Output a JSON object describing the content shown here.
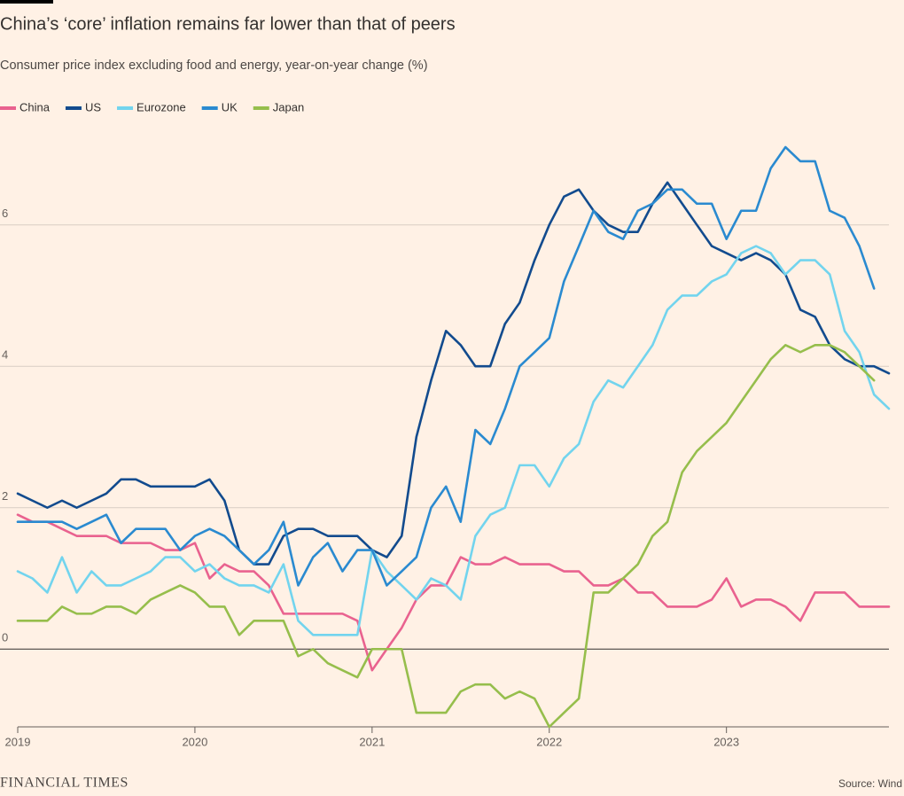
{
  "chart_data": {
    "type": "line",
    "title": "China’s ‘core’ inflation remains far lower than that of peers",
    "subtitle": "Consumer price index excluding food and energy, year-on-year change (%)",
    "source": "Source: Wind",
    "brand": "FINANCIAL TIMES",
    "x": [
      2019,
      2019.083,
      2019.167,
      2019.25,
      2019.333,
      2019.417,
      2019.5,
      2019.583,
      2019.667,
      2019.75,
      2019.833,
      2019.917,
      2020,
      2020.083,
      2020.167,
      2020.25,
      2020.333,
      2020.417,
      2020.5,
      2020.583,
      2020.667,
      2020.75,
      2020.833,
      2020.917,
      2021,
      2021.083,
      2021.167,
      2021.25,
      2021.333,
      2021.417,
      2021.5,
      2021.583,
      2021.667,
      2021.75,
      2021.833,
      2021.917,
      2022,
      2022.083,
      2022.167,
      2022.25,
      2022.333,
      2022.417,
      2022.5,
      2022.583,
      2022.667,
      2022.75,
      2022.833,
      2022.917,
      2023,
      2023.083,
      2023.167,
      2023.25,
      2023.333,
      2023.417,
      2023.5,
      2023.583,
      2023.667,
      2023.75,
      2023.833,
      2023.917
    ],
    "xlim": [
      2019,
      2023.917
    ],
    "xticks": [
      2019,
      2020,
      2021,
      2022,
      2023
    ],
    "ylim": [
      -1.1,
      7.3
    ],
    "yticks": [
      0,
      2,
      4,
      6
    ],
    "grid": true,
    "legend": "top-left",
    "series": [
      {
        "name": "China",
        "color": "#e9628f",
        "values": [
          1.9,
          1.8,
          1.8,
          1.7,
          1.6,
          1.6,
          1.6,
          1.5,
          1.5,
          1.5,
          1.4,
          1.4,
          1.5,
          1.0,
          1.2,
          1.1,
          1.1,
          0.9,
          0.5,
          0.5,
          0.5,
          0.5,
          0.5,
          0.4,
          -0.3,
          0.0,
          0.3,
          0.7,
          0.9,
          0.9,
          1.3,
          1.2,
          1.2,
          1.3,
          1.2,
          1.2,
          1.2,
          1.1,
          1.1,
          0.9,
          0.9,
          1.0,
          0.8,
          0.8,
          0.6,
          0.6,
          0.6,
          0.7,
          1.0,
          0.6,
          0.7,
          0.7,
          0.6,
          0.4,
          0.8,
          0.8,
          0.8,
          0.6,
          0.6,
          0.6
        ]
      },
      {
        "name": "US",
        "color": "#124b8e",
        "values": [
          2.2,
          2.1,
          2.0,
          2.1,
          2.0,
          2.1,
          2.2,
          2.4,
          2.4,
          2.3,
          2.3,
          2.3,
          2.3,
          2.4,
          2.1,
          1.4,
          1.2,
          1.2,
          1.6,
          1.7,
          1.7,
          1.6,
          1.6,
          1.6,
          1.4,
          1.3,
          1.6,
          3.0,
          3.8,
          4.5,
          4.3,
          4.0,
          4.0,
          4.6,
          4.9,
          5.5,
          6.0,
          6.4,
          6.5,
          6.2,
          6.0,
          5.9,
          5.9,
          6.3,
          6.6,
          6.3,
          6.0,
          5.7,
          5.6,
          5.5,
          5.6,
          5.5,
          5.3,
          4.8,
          4.7,
          4.3,
          4.1,
          4.0,
          4.0,
          3.9
        ]
      },
      {
        "name": "Eurozone",
        "color": "#72d4ee",
        "values": [
          1.1,
          1.0,
          0.8,
          1.3,
          0.8,
          1.1,
          0.9,
          0.9,
          1.0,
          1.1,
          1.3,
          1.3,
          1.1,
          1.2,
          1.0,
          0.9,
          0.9,
          0.8,
          1.2,
          0.4,
          0.2,
          0.2,
          0.2,
          0.2,
          1.4,
          1.1,
          0.9,
          0.7,
          1.0,
          0.9,
          0.7,
          1.6,
          1.9,
          2.0,
          2.6,
          2.6,
          2.3,
          2.7,
          2.9,
          3.5,
          3.8,
          3.7,
          4.0,
          4.3,
          4.8,
          5.0,
          5.0,
          5.2,
          5.3,
          5.6,
          5.7,
          5.6,
          5.3,
          5.5,
          5.5,
          5.3,
          4.5,
          4.2,
          3.6,
          3.4
        ]
      },
      {
        "name": "UK",
        "color": "#2a8ad0",
        "values": [
          1.8,
          1.8,
          1.8,
          1.8,
          1.7,
          1.8,
          1.9,
          1.5,
          1.7,
          1.7,
          1.7,
          1.4,
          1.6,
          1.7,
          1.6,
          1.4,
          1.2,
          1.4,
          1.8,
          0.9,
          1.3,
          1.5,
          1.1,
          1.4,
          1.4,
          0.9,
          1.1,
          1.3,
          2.0,
          2.3,
          1.8,
          3.1,
          2.9,
          3.4,
          4.0,
          4.2,
          4.4,
          5.2,
          5.7,
          6.2,
          5.9,
          5.8,
          6.2,
          6.3,
          6.5,
          6.5,
          6.3,
          6.3,
          5.8,
          6.2,
          6.2,
          6.8,
          7.1,
          6.9,
          6.9,
          6.2,
          6.1,
          5.7,
          5.1,
          null
        ]
      },
      {
        "name": "Japan",
        "color": "#96be4c",
        "values": [
          0.4,
          0.4,
          0.4,
          0.6,
          0.5,
          0.5,
          0.6,
          0.6,
          0.5,
          0.7,
          0.8,
          0.9,
          0.8,
          0.6,
          0.6,
          0.2,
          0.4,
          0.4,
          0.4,
          -0.1,
          0.0,
          -0.2,
          -0.3,
          -0.4,
          0.0,
          0.0,
          0.0,
          -0.9,
          -0.9,
          -0.9,
          -0.6,
          -0.5,
          -0.5,
          -0.7,
          -0.6,
          -0.7,
          -1.1,
          -0.9,
          -0.7,
          0.8,
          0.8,
          1.0,
          1.2,
          1.6,
          1.8,
          2.5,
          2.8,
          3.0,
          3.2,
          3.5,
          3.8,
          4.1,
          4.3,
          4.2,
          4.3,
          4.3,
          4.2,
          4.0,
          3.8,
          null
        ]
      }
    ]
  }
}
